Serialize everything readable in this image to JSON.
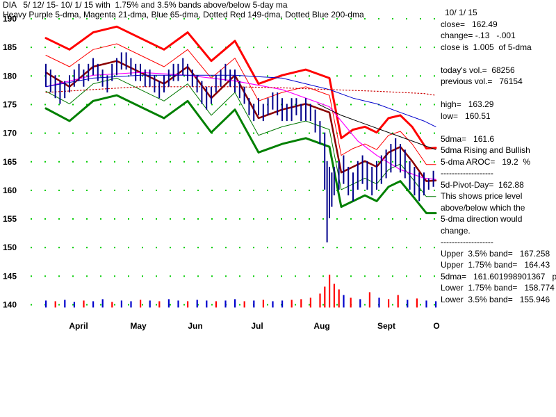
{
  "header": {
    "line1": "DIA   5/ 12/ 15- 10/ 1/ 15 with  1.75% and 3.5% bands above/below 5-day ma",
    "line2": "Heavy Purple 5-dma, Magenta 21-dma, Blue 65-dma, Dotted Red 149-dma, Dotted Blue 200-dma"
  },
  "panel": {
    "date": "10/ 1/ 15",
    "close": "close=   162.49",
    "change": "change= -.13   -.001",
    "close_ratio": "close is  1.005  of 5-dma",
    "today_vol": "today's vol.=  68256",
    "prev_vol": "previous vol.=   76154",
    "high": "high=   163.29",
    "low": "low=   160.51",
    "five_dma": "5dma=   161.6",
    "trend": "5dma Rising and Bullish",
    "aroc": "5-dma AROC=   19.2  %",
    "sep1": "-------------------",
    "pivot": "5d-Pivot-Day=  162.88",
    "expl1": "This shows price level",
    "expl2": "above/below which the",
    "expl3": "5-dma direction would",
    "expl4": "change.",
    "sep2": "-------------------",
    "upper35": "Upper  3.5% band=   167.258",
    "upper175": "Upper  1.75% band=   164.43",
    "dma_exact": "5dma=   161.601998901367   p",
    "lower175": "Lower  1.75% band=   158.774",
    "lower35": "Lower  3.5% band=   155.946"
  },
  "colors": {
    "bars": "#00008b",
    "dma5": "#8b0000",
    "upper35": "#ff0000",
    "upper175": "#ff0000",
    "lower175": "#007700",
    "lower35": "#008000",
    "dma21": "#ff00ff",
    "dma65": "#0000cc",
    "dma149": "#cc0000",
    "dma200": "#000000",
    "volume_up": "#0000cc",
    "volume_down": "#ff0000",
    "grid": "#00cc00"
  },
  "chart_data": {
    "type": "line",
    "ylim": [
      138,
      190
    ],
    "y_ticks": [
      140,
      145,
      150,
      155,
      160,
      165,
      170,
      175,
      180,
      185,
      190
    ],
    "x_labels": [
      "April",
      "May",
      "Jun",
      "Jul",
      "Aug",
      "Sept",
      "O"
    ],
    "grid": true,
    "series": [
      {
        "name": "5-dma",
        "x": [
          0,
          10,
          20,
          30,
          40,
          50,
          60,
          70,
          80,
          90,
          100,
          110,
          120,
          125,
          130,
          135,
          140,
          145,
          150,
          155,
          161,
          165
        ],
        "values": [
          180.5,
          178.0,
          181.5,
          182.5,
          180.5,
          178.5,
          181.5,
          176.0,
          180.0,
          172.5,
          174.0,
          175.0,
          173.5,
          163.0,
          164.0,
          165.0,
          164.0,
          166.5,
          167.5,
          165.0,
          161.5,
          161.6
        ]
      },
      {
        "name": "Upper 3.5% band",
        "x": [
          0,
          10,
          20,
          30,
          40,
          50,
          60,
          70,
          80,
          90,
          100,
          110,
          120,
          125,
          130,
          135,
          140,
          145,
          150,
          155,
          161,
          165
        ],
        "values": [
          186.5,
          184.5,
          187.5,
          188.5,
          186.5,
          184.5,
          187.5,
          182.5,
          186.0,
          178.5,
          180.0,
          181.0,
          179.5,
          169.0,
          170.5,
          171.0,
          170.0,
          172.5,
          173.0,
          171.0,
          167.2,
          167.3
        ]
      },
      {
        "name": "Upper 1.75% band",
        "x": [
          0,
          10,
          20,
          30,
          40,
          50,
          60,
          70,
          80,
          90,
          100,
          110,
          120,
          125,
          130,
          135,
          140,
          145,
          150,
          155,
          161,
          165
        ],
        "values": [
          183.5,
          181.5,
          184.5,
          185.5,
          183.5,
          181.5,
          184.5,
          179.5,
          183.0,
          175.5,
          177.0,
          178.0,
          176.5,
          166.0,
          167.2,
          168.0,
          167.0,
          169.5,
          170.2,
          168.0,
          164.4,
          164.4
        ]
      },
      {
        "name": "Lower 1.75% band",
        "x": [
          0,
          10,
          20,
          30,
          40,
          50,
          60,
          70,
          80,
          90,
          100,
          110,
          120,
          125,
          130,
          135,
          140,
          145,
          150,
          155,
          161,
          165
        ],
        "values": [
          177.2,
          175.0,
          178.5,
          179.5,
          177.5,
          175.5,
          178.5,
          173.0,
          177.0,
          169.5,
          171.0,
          172.0,
          170.5,
          160.0,
          161.0,
          162.0,
          161.0,
          163.5,
          164.5,
          162.0,
          158.8,
          158.8
        ]
      },
      {
        "name": "Lower 3.5% band",
        "x": [
          0,
          10,
          20,
          30,
          40,
          50,
          60,
          70,
          80,
          90,
          100,
          110,
          120,
          125,
          130,
          135,
          140,
          145,
          150,
          155,
          161,
          165
        ],
        "values": [
          174.2,
          172.0,
          175.5,
          176.5,
          174.5,
          172.5,
          175.5,
          170.0,
          174.0,
          166.5,
          168.0,
          169.0,
          167.5,
          157.0,
          158.0,
          159.0,
          158.0,
          160.5,
          161.5,
          159.0,
          155.9,
          155.9
        ]
      },
      {
        "name": "21-dma",
        "x": [
          0,
          20,
          40,
          60,
          80,
          100,
          110,
          120,
          126,
          132,
          140,
          150,
          160,
          165
        ],
        "values": [
          178.0,
          180.0,
          180.5,
          180.0,
          179.0,
          177.5,
          176.0,
          174.5,
          171.5,
          168.5,
          166.0,
          163.5,
          162.0,
          161.8
        ]
      },
      {
        "name": "65-dma",
        "x": [
          0,
          20,
          40,
          60,
          80,
          100,
          110,
          120,
          130,
          140,
          150,
          160,
          165
        ],
        "values": [
          178.0,
          179.5,
          180.0,
          180.0,
          180.0,
          179.5,
          178.5,
          177.5,
          176.0,
          175.0,
          173.5,
          172.0,
          171.0
        ]
      },
      {
        "name": "149-dma",
        "x": [
          0,
          20,
          40,
          60,
          80,
          100,
          120,
          140,
          160,
          165
        ],
        "values": [
          177.0,
          177.5,
          178.0,
          178.0,
          178.0,
          177.8,
          177.5,
          177.2,
          176.8,
          176.5
        ]
      },
      {
        "name": "200-dma",
        "x": [
          115,
          125,
          135,
          145,
          155,
          165
        ],
        "values": [
          175.0,
          173.0,
          171.5,
          170.0,
          168.5,
          167.0
        ]
      }
    ],
    "volume": [
      {
        "x": 0,
        "h": 10,
        "up": true
      },
      {
        "x": 4,
        "h": 9,
        "up": false
      },
      {
        "x": 8,
        "h": 11,
        "up": true
      },
      {
        "x": 12,
        "h": 8,
        "up": true
      },
      {
        "x": 16,
        "h": 10,
        "up": false
      },
      {
        "x": 20,
        "h": 9,
        "up": true
      },
      {
        "x": 24,
        "h": 12,
        "up": true
      },
      {
        "x": 28,
        "h": 8,
        "up": false
      },
      {
        "x": 32,
        "h": 10,
        "up": true
      },
      {
        "x": 36,
        "h": 9,
        "up": true
      },
      {
        "x": 40,
        "h": 11,
        "up": false
      },
      {
        "x": 44,
        "h": 10,
        "up": true
      },
      {
        "x": 48,
        "h": 9,
        "up": false
      },
      {
        "x": 52,
        "h": 12,
        "up": true
      },
      {
        "x": 56,
        "h": 10,
        "up": true
      },
      {
        "x": 60,
        "h": 9,
        "up": false
      },
      {
        "x": 64,
        "h": 11,
        "up": true
      },
      {
        "x": 68,
        "h": 10,
        "up": true
      },
      {
        "x": 72,
        "h": 9,
        "up": false
      },
      {
        "x": 76,
        "h": 10,
        "up": true
      },
      {
        "x": 80,
        "h": 12,
        "up": true
      },
      {
        "x": 84,
        "h": 9,
        "up": false
      },
      {
        "x": 88,
        "h": 10,
        "up": true
      },
      {
        "x": 92,
        "h": 11,
        "up": false
      },
      {
        "x": 96,
        "h": 9,
        "up": true
      },
      {
        "x": 100,
        "h": 10,
        "up": true
      },
      {
        "x": 104,
        "h": 11,
        "up": false
      },
      {
        "x": 108,
        "h": 12,
        "up": false
      },
      {
        "x": 112,
        "h": 14,
        "up": false
      },
      {
        "x": 116,
        "h": 20,
        "up": false
      },
      {
        "x": 118,
        "h": 30,
        "up": false
      },
      {
        "x": 120,
        "h": 47,
        "up": false
      },
      {
        "x": 122,
        "h": 34,
        "up": false
      },
      {
        "x": 124,
        "h": 26,
        "up": false
      },
      {
        "x": 126,
        "h": 18,
        "up": true
      },
      {
        "x": 129,
        "h": 14,
        "up": false
      },
      {
        "x": 133,
        "h": 12,
        "up": true
      },
      {
        "x": 137,
        "h": 22,
        "up": false
      },
      {
        "x": 141,
        "h": 14,
        "up": true
      },
      {
        "x": 145,
        "h": 12,
        "up": false
      },
      {
        "x": 149,
        "h": 18,
        "up": false
      },
      {
        "x": 153,
        "h": 11,
        "up": true
      },
      {
        "x": 157,
        "h": 13,
        "up": false
      },
      {
        "x": 161,
        "h": 10,
        "up": true
      },
      {
        "x": 165,
        "h": 9,
        "up": true
      }
    ],
    "price_bars": [
      {
        "x": 0,
        "h": 182,
        "l": 178
      },
      {
        "x": 2,
        "h": 181,
        "l": 177
      },
      {
        "x": 4,
        "h": 180,
        "l": 176
      },
      {
        "x": 6,
        "h": 179,
        "l": 175
      },
      {
        "x": 8,
        "h": 179,
        "l": 176
      },
      {
        "x": 10,
        "h": 180,
        "l": 177
      },
      {
        "x": 12,
        "h": 181,
        "l": 178
      },
      {
        "x": 14,
        "h": 182,
        "l": 179
      },
      {
        "x": 16,
        "h": 181,
        "l": 178
      },
      {
        "x": 18,
        "h": 182,
        "l": 179
      },
      {
        "x": 20,
        "h": 183,
        "l": 180
      },
      {
        "x": 22,
        "h": 182,
        "l": 179
      },
      {
        "x": 24,
        "h": 181,
        "l": 178
      },
      {
        "x": 26,
        "h": 180,
        "l": 177
      },
      {
        "x": 28,
        "h": 182,
        "l": 179
      },
      {
        "x": 30,
        "h": 183,
        "l": 180
      },
      {
        "x": 32,
        "h": 184,
        "l": 181
      },
      {
        "x": 34,
        "h": 184,
        "l": 181
      },
      {
        "x": 36,
        "h": 183,
        "l": 180
      },
      {
        "x": 38,
        "h": 182,
        "l": 179
      },
      {
        "x": 40,
        "h": 182,
        "l": 179
      },
      {
        "x": 42,
        "h": 181,
        "l": 178
      },
      {
        "x": 44,
        "h": 181,
        "l": 178
      },
      {
        "x": 46,
        "h": 180,
        "l": 177
      },
      {
        "x": 48,
        "h": 179,
        "l": 176
      },
      {
        "x": 50,
        "h": 180,
        "l": 177
      },
      {
        "x": 52,
        "h": 181,
        "l": 178
      },
      {
        "x": 54,
        "h": 182,
        "l": 179
      },
      {
        "x": 56,
        "h": 182,
        "l": 179
      },
      {
        "x": 58,
        "h": 183,
        "l": 180
      },
      {
        "x": 60,
        "h": 182,
        "l": 179
      },
      {
        "x": 62,
        "h": 181,
        "l": 178
      },
      {
        "x": 64,
        "h": 180,
        "l": 177
      },
      {
        "x": 66,
        "h": 179,
        "l": 175
      },
      {
        "x": 68,
        "h": 178,
        "l": 174
      },
      {
        "x": 70,
        "h": 178,
        "l": 175
      },
      {
        "x": 72,
        "h": 180,
        "l": 177
      },
      {
        "x": 74,
        "h": 181,
        "l": 178
      },
      {
        "x": 76,
        "h": 182,
        "l": 179
      },
      {
        "x": 78,
        "h": 181,
        "l": 178
      },
      {
        "x": 80,
        "h": 181,
        "l": 177
      },
      {
        "x": 82,
        "h": 179,
        "l": 176
      },
      {
        "x": 84,
        "h": 178,
        "l": 175
      },
      {
        "x": 86,
        "h": 176,
        "l": 173
      },
      {
        "x": 88,
        "h": 175,
        "l": 172
      },
      {
        "x": 90,
        "h": 176,
        "l": 173
      },
      {
        "x": 92,
        "h": 175,
        "l": 172
      },
      {
        "x": 94,
        "h": 176,
        "l": 173
      },
      {
        "x": 96,
        "h": 177,
        "l": 174
      },
      {
        "x": 98,
        "h": 177,
        "l": 173
      },
      {
        "x": 100,
        "h": 176,
        "l": 172
      },
      {
        "x": 102,
        "h": 175,
        "l": 172
      },
      {
        "x": 104,
        "h": 176,
        "l": 172
      },
      {
        "x": 106,
        "h": 176,
        "l": 173
      },
      {
        "x": 108,
        "h": 175,
        "l": 172
      },
      {
        "x": 110,
        "h": 176,
        "l": 172
      },
      {
        "x": 112,
        "h": 175,
        "l": 172
      },
      {
        "x": 114,
        "h": 174,
        "l": 170
      },
      {
        "x": 116,
        "h": 172,
        "l": 168
      },
      {
        "x": 118,
        "h": 170,
        "l": 160
      },
      {
        "x": 119,
        "h": 165,
        "l": 150.8
      },
      {
        "x": 120,
        "h": 164,
        "l": 155
      },
      {
        "x": 121,
        "h": 163,
        "l": 157
      },
      {
        "x": 122,
        "h": 164,
        "l": 159
      },
      {
        "x": 124,
        "h": 165,
        "l": 160
      },
      {
        "x": 126,
        "h": 166,
        "l": 161
      },
      {
        "x": 128,
        "h": 164,
        "l": 159
      },
      {
        "x": 130,
        "h": 163,
        "l": 158
      },
      {
        "x": 132,
        "h": 165,
        "l": 160
      },
      {
        "x": 134,
        "h": 166,
        "l": 161
      },
      {
        "x": 136,
        "h": 165,
        "l": 160
      },
      {
        "x": 138,
        "h": 164,
        "l": 159
      },
      {
        "x": 140,
        "h": 165,
        "l": 160
      },
      {
        "x": 142,
        "h": 166,
        "l": 161
      },
      {
        "x": 144,
        "h": 167,
        "l": 162
      },
      {
        "x": 146,
        "h": 168,
        "l": 163
      },
      {
        "x": 148,
        "h": 169,
        "l": 164
      },
      {
        "x": 150,
        "h": 168,
        "l": 163
      },
      {
        "x": 152,
        "h": 167,
        "l": 162
      },
      {
        "x": 154,
        "h": 165,
        "l": 160
      },
      {
        "x": 156,
        "h": 164,
        "l": 159
      },
      {
        "x": 158,
        "h": 163,
        "l": 158
      },
      {
        "x": 160,
        "h": 163,
        "l": 159
      },
      {
        "x": 162,
        "h": 162,
        "l": 160
      },
      {
        "x": 164,
        "h": 163.3,
        "l": 160.5
      }
    ]
  }
}
